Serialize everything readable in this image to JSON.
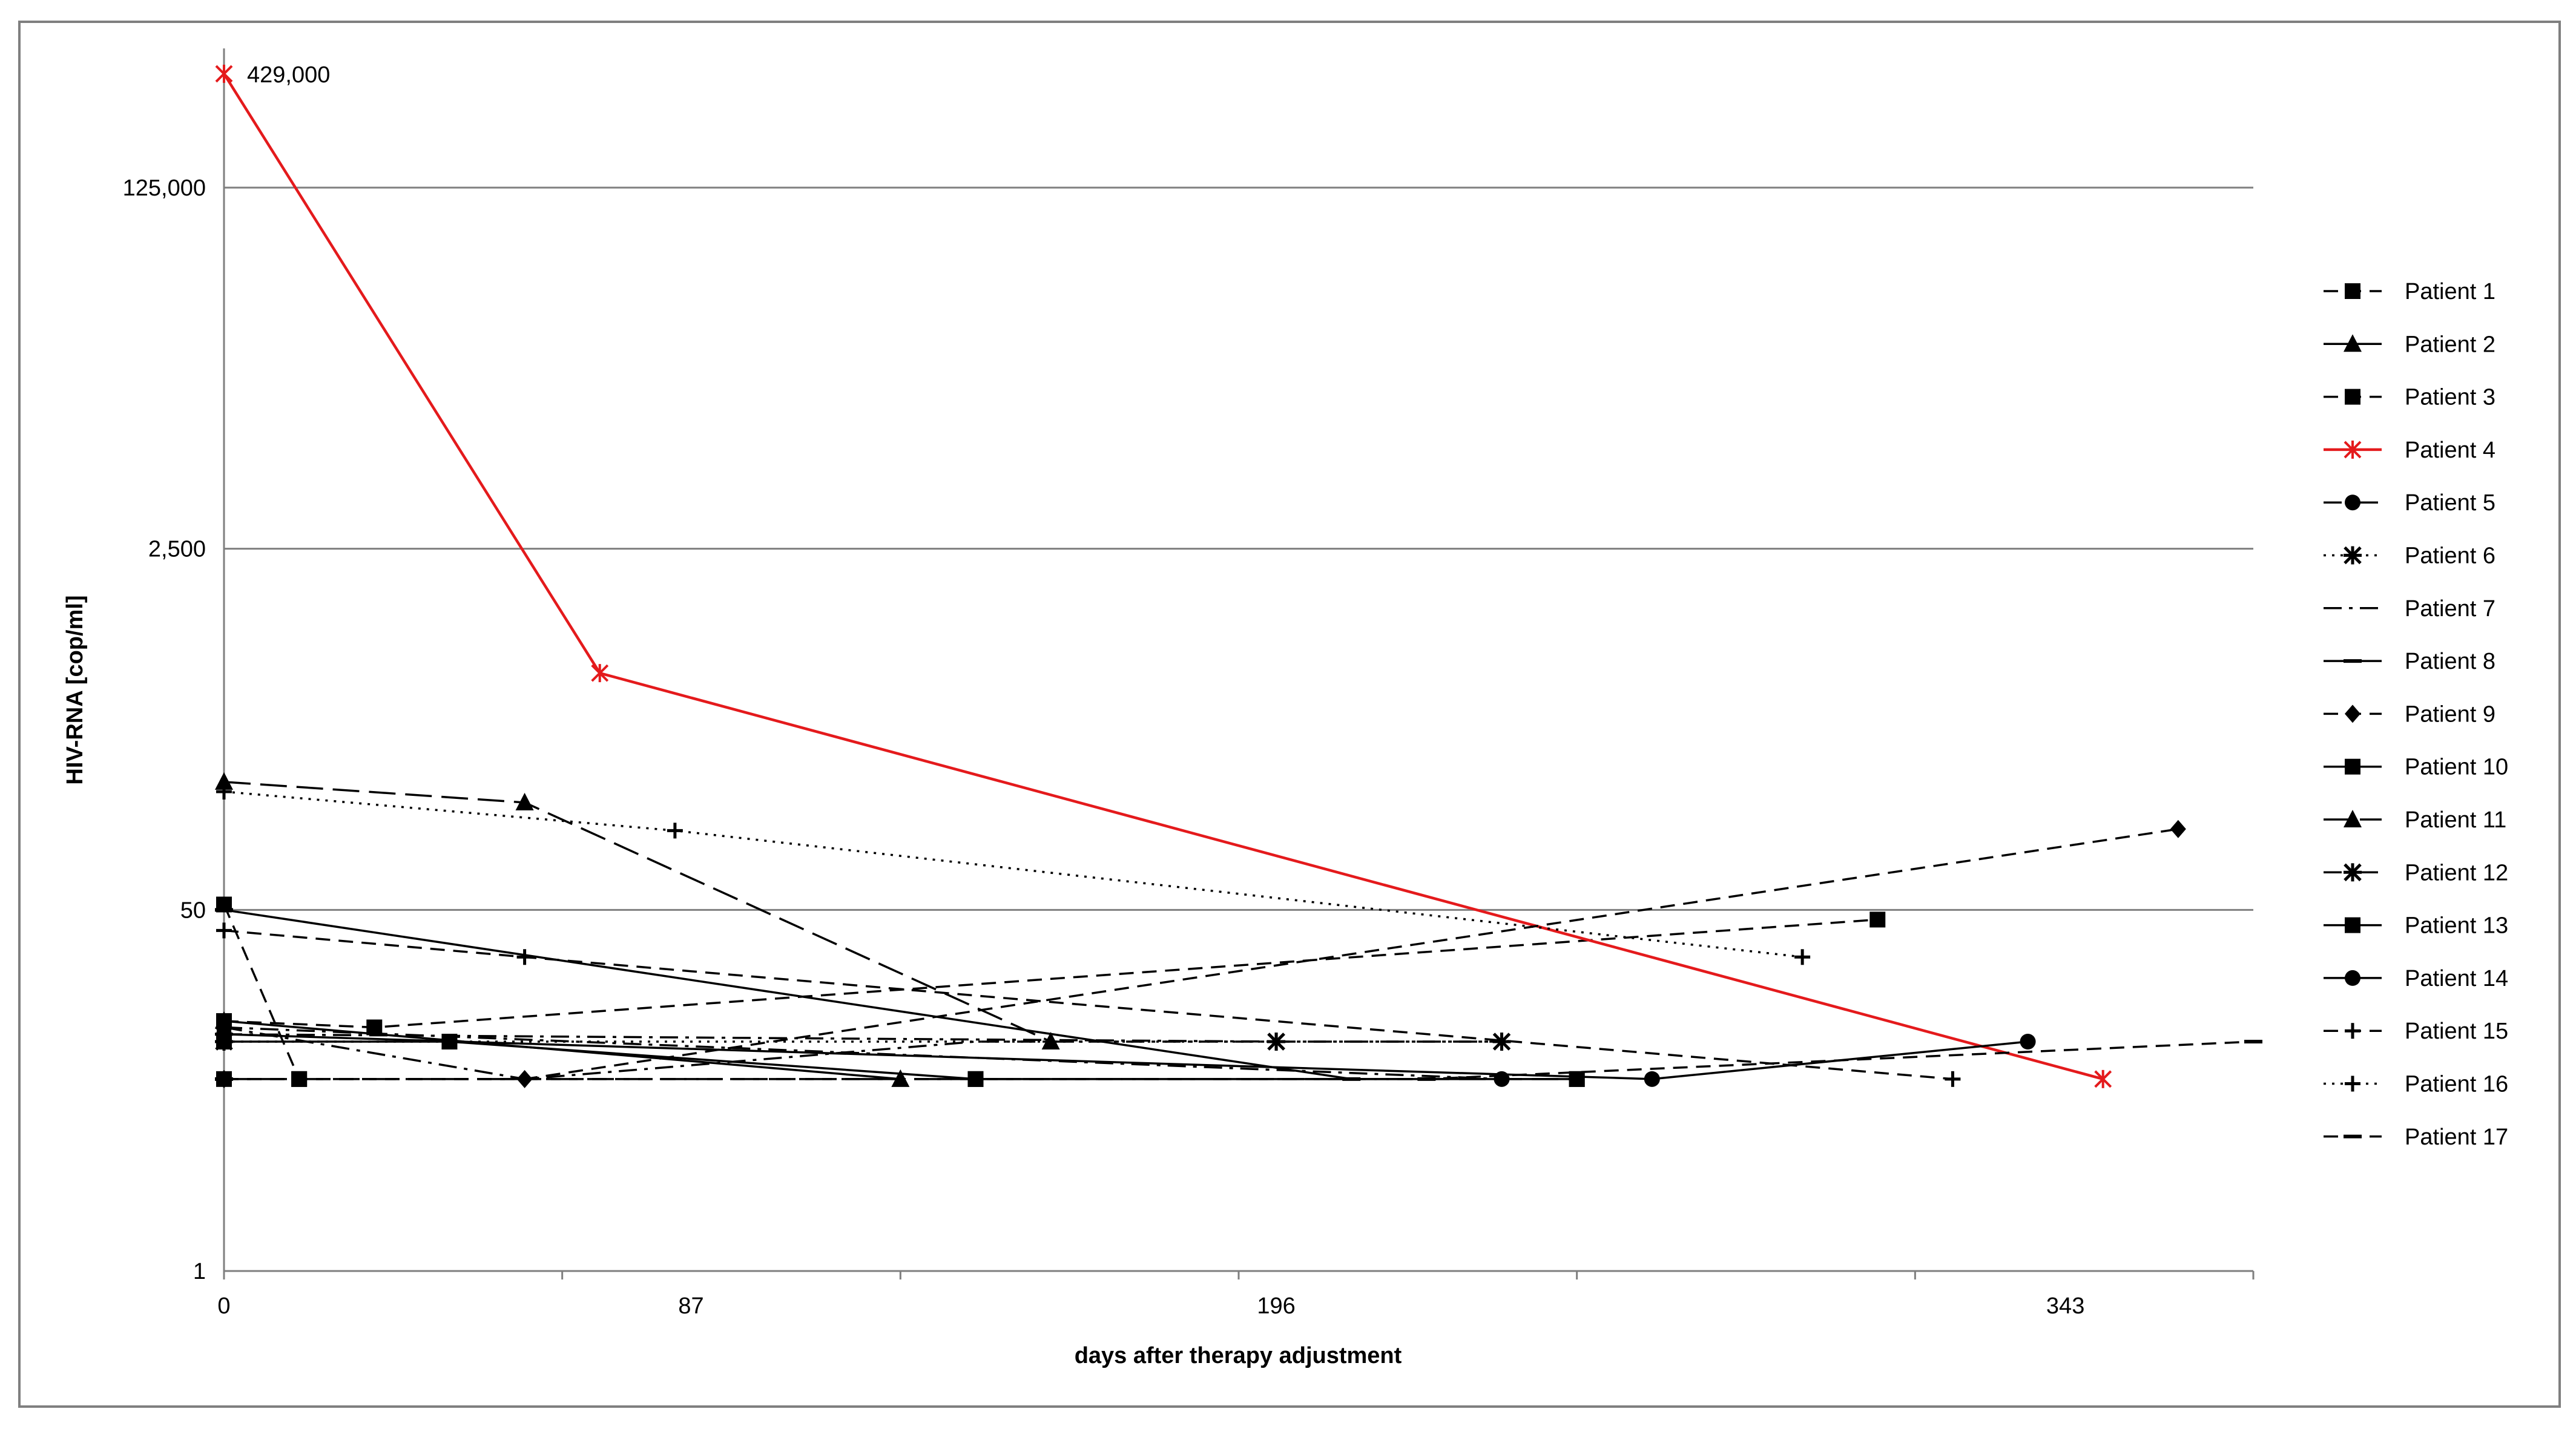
{
  "chart_data": {
    "type": "line",
    "title": "",
    "xlabel": "days after therapy adjustment",
    "ylabel": "HIV-RNA [cop/ml]",
    "y_scale": "log",
    "ylim": [
      1,
      429000
    ],
    "xlim": [
      0,
      378
    ],
    "x_ticks": [
      0,
      87,
      196,
      343
    ],
    "y_ticks": [
      1,
      50,
      2500,
      125000
    ],
    "y_tick_labels": [
      "1",
      "50",
      "2,500",
      "125,000"
    ],
    "grid": "horizontal",
    "legend_position": "right",
    "annotations": [
      {
        "text": "429,000",
        "series": "Patient 4",
        "point_index": 0
      }
    ],
    "series": [
      {
        "name": "Patient 1",
        "marker": "square",
        "dash": "dash",
        "color": "#000000",
        "points": [
          [
            0,
            53
          ],
          [
            14,
            8
          ]
        ]
      },
      {
        "name": "Patient 2",
        "marker": "triangle",
        "dash": "solid",
        "color": "#000000",
        "points": [
          [
            0,
            15
          ],
          [
            126,
            8
          ]
        ]
      },
      {
        "name": "Patient 3",
        "marker": "square",
        "dash": "dash",
        "color": "#000000",
        "points": [
          [
            0,
            15
          ],
          [
            28,
            14
          ],
          [
            308,
            45
          ]
        ]
      },
      {
        "name": "Patient 4",
        "marker": "star",
        "dash": "solid",
        "color": "#e41a1c",
        "points": [
          [
            0,
            429000
          ],
          [
            70,
            650
          ],
          [
            350,
            8
          ]
        ]
      },
      {
        "name": "Patient 5",
        "marker": "circle",
        "dash": "dashdot",
        "color": "#000000",
        "points": [
          [
            0,
            14
          ],
          [
            238,
            8
          ]
        ]
      },
      {
        "name": "Patient 6",
        "marker": "asterisk",
        "dash": "dot",
        "color": "#000000",
        "points": [
          [
            0,
            12
          ],
          [
            196,
            12
          ]
        ]
      },
      {
        "name": "Patient 7",
        "marker": "none",
        "dash": "dashdot",
        "color": "#000000",
        "points": [
          [
            0,
            14
          ],
          [
            56,
            8
          ],
          [
            140,
            12
          ],
          [
            238,
            12
          ]
        ]
      },
      {
        "name": "Patient 8",
        "marker": "dash",
        "dash": "solid",
        "color": "#000000",
        "points": [
          [
            0,
            50
          ],
          [
            210,
            8
          ]
        ]
      },
      {
        "name": "Patient 9",
        "marker": "diamond",
        "dash": "dash",
        "color": "#000000",
        "points": [
          [
            0,
            8
          ],
          [
            56,
            8
          ],
          [
            364,
            120
          ]
        ]
      },
      {
        "name": "Patient 10",
        "marker": "square",
        "dash": "solid",
        "color": "#000000",
        "points": [
          [
            0,
            12
          ],
          [
            42,
            12
          ],
          [
            140,
            8
          ],
          [
            252,
            8
          ]
        ]
      },
      {
        "name": "Patient 11",
        "marker": "triangle",
        "dash": "longdash",
        "color": "#000000",
        "points": [
          [
            0,
            200
          ],
          [
            56,
            160
          ],
          [
            154,
            12
          ]
        ]
      },
      {
        "name": "Patient 12",
        "marker": "asterisk",
        "dash": "dashdot",
        "color": "#000000",
        "points": [
          [
            0,
            13
          ],
          [
            196,
            12
          ],
          [
            238,
            12
          ]
        ]
      },
      {
        "name": "Patient 13",
        "marker": "square",
        "dash": "longdash",
        "color": "#000000",
        "points": [
          [
            0,
            8
          ],
          [
            14,
            8
          ],
          [
            140,
            8
          ],
          [
            252,
            8
          ]
        ]
      },
      {
        "name": "Patient 14",
        "marker": "circle",
        "dash": "solid",
        "color": "#000000",
        "points": [
          [
            0,
            13
          ],
          [
            266,
            8
          ],
          [
            336,
            12
          ]
        ]
      },
      {
        "name": "Patient 15",
        "marker": "plus",
        "dash": "dash",
        "color": "#000000",
        "points": [
          [
            0,
            40
          ],
          [
            56,
            30
          ],
          [
            322,
            8
          ]
        ]
      },
      {
        "name": "Patient 16",
        "marker": "plus",
        "dash": "dot",
        "color": "#000000",
        "points": [
          [
            0,
            180
          ],
          [
            84,
            118
          ],
          [
            294,
            30
          ]
        ]
      },
      {
        "name": "Patient 17",
        "marker": "dash",
        "dash": "dash",
        "color": "#000000",
        "points": [
          [
            0,
            8
          ],
          [
            224,
            8
          ],
          [
            378,
            12
          ]
        ]
      }
    ]
  }
}
